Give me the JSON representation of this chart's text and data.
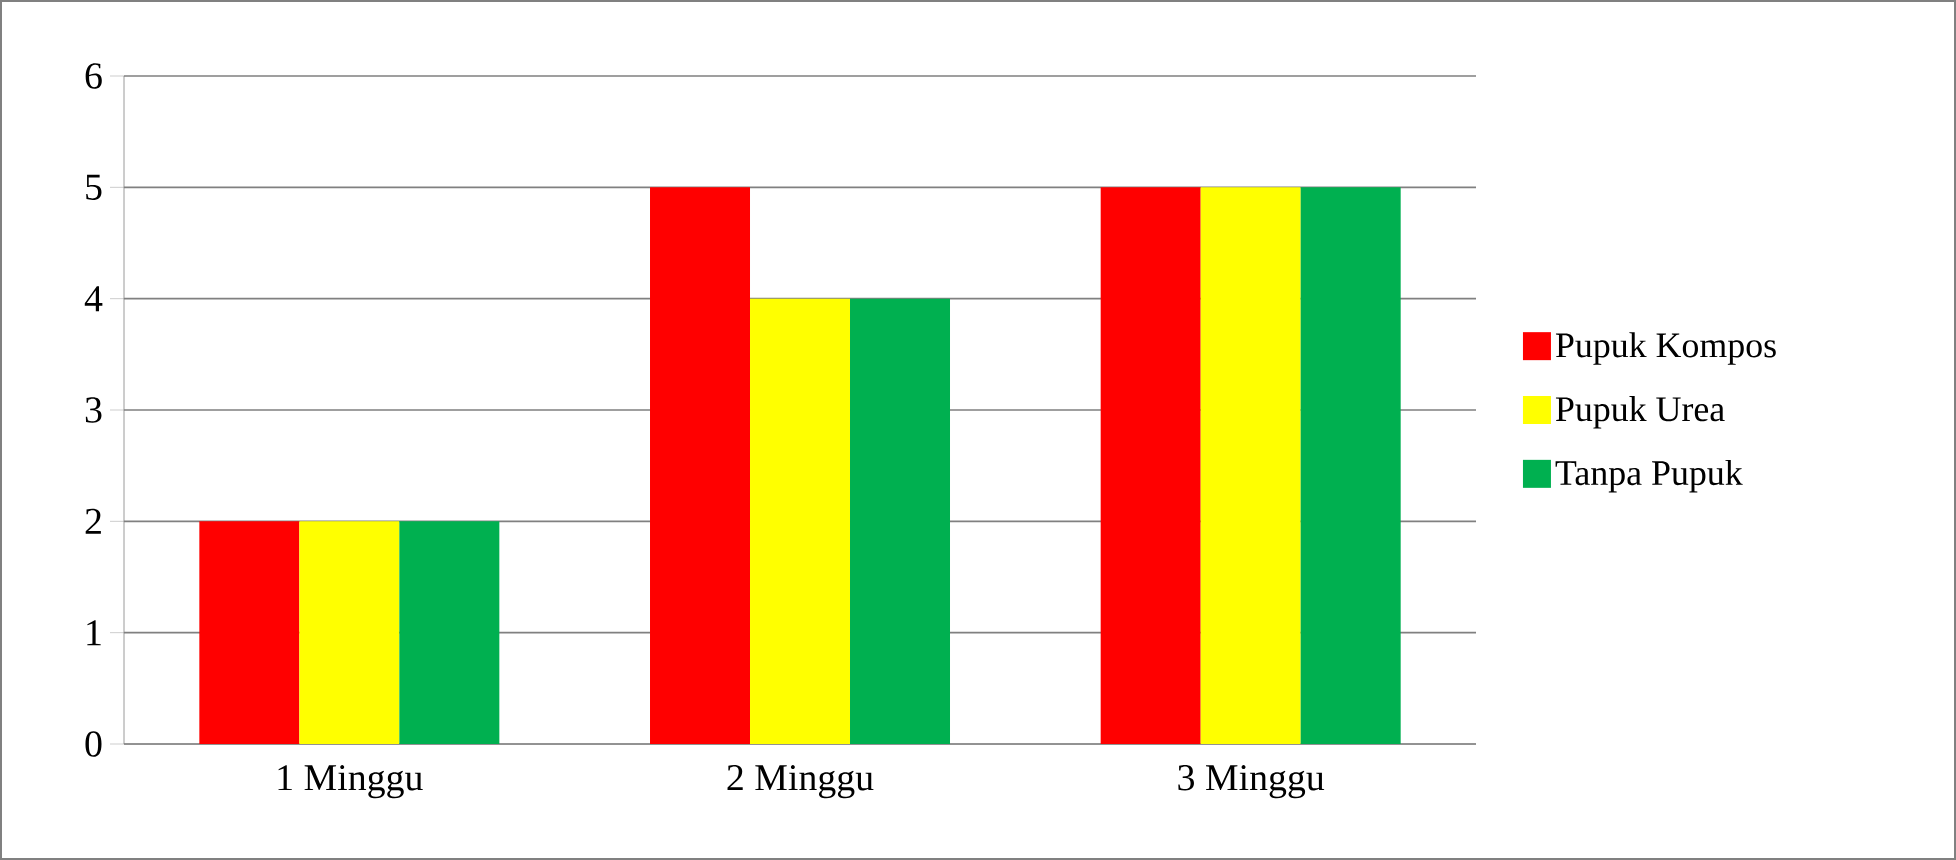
{
  "chart_data": {
    "type": "bar",
    "categories": [
      "1 Minggu",
      "2 Minggu",
      "3 Minggu"
    ],
    "series": [
      {
        "name": "Pupuk Kompos",
        "color": "#ff0000",
        "values": [
          2,
          5,
          5
        ]
      },
      {
        "name": "Pupuk Urea",
        "color": "#ffff00",
        "values": [
          2,
          4,
          5
        ]
      },
      {
        "name": "Tanpa Pupuk",
        "color": "#00b050",
        "values": [
          2,
          4,
          5
        ]
      }
    ],
    "ylim": [
      0,
      6
    ],
    "yticks": [
      0,
      1,
      2,
      3,
      4,
      5,
      6
    ],
    "grid": "y",
    "legend": "right"
  }
}
